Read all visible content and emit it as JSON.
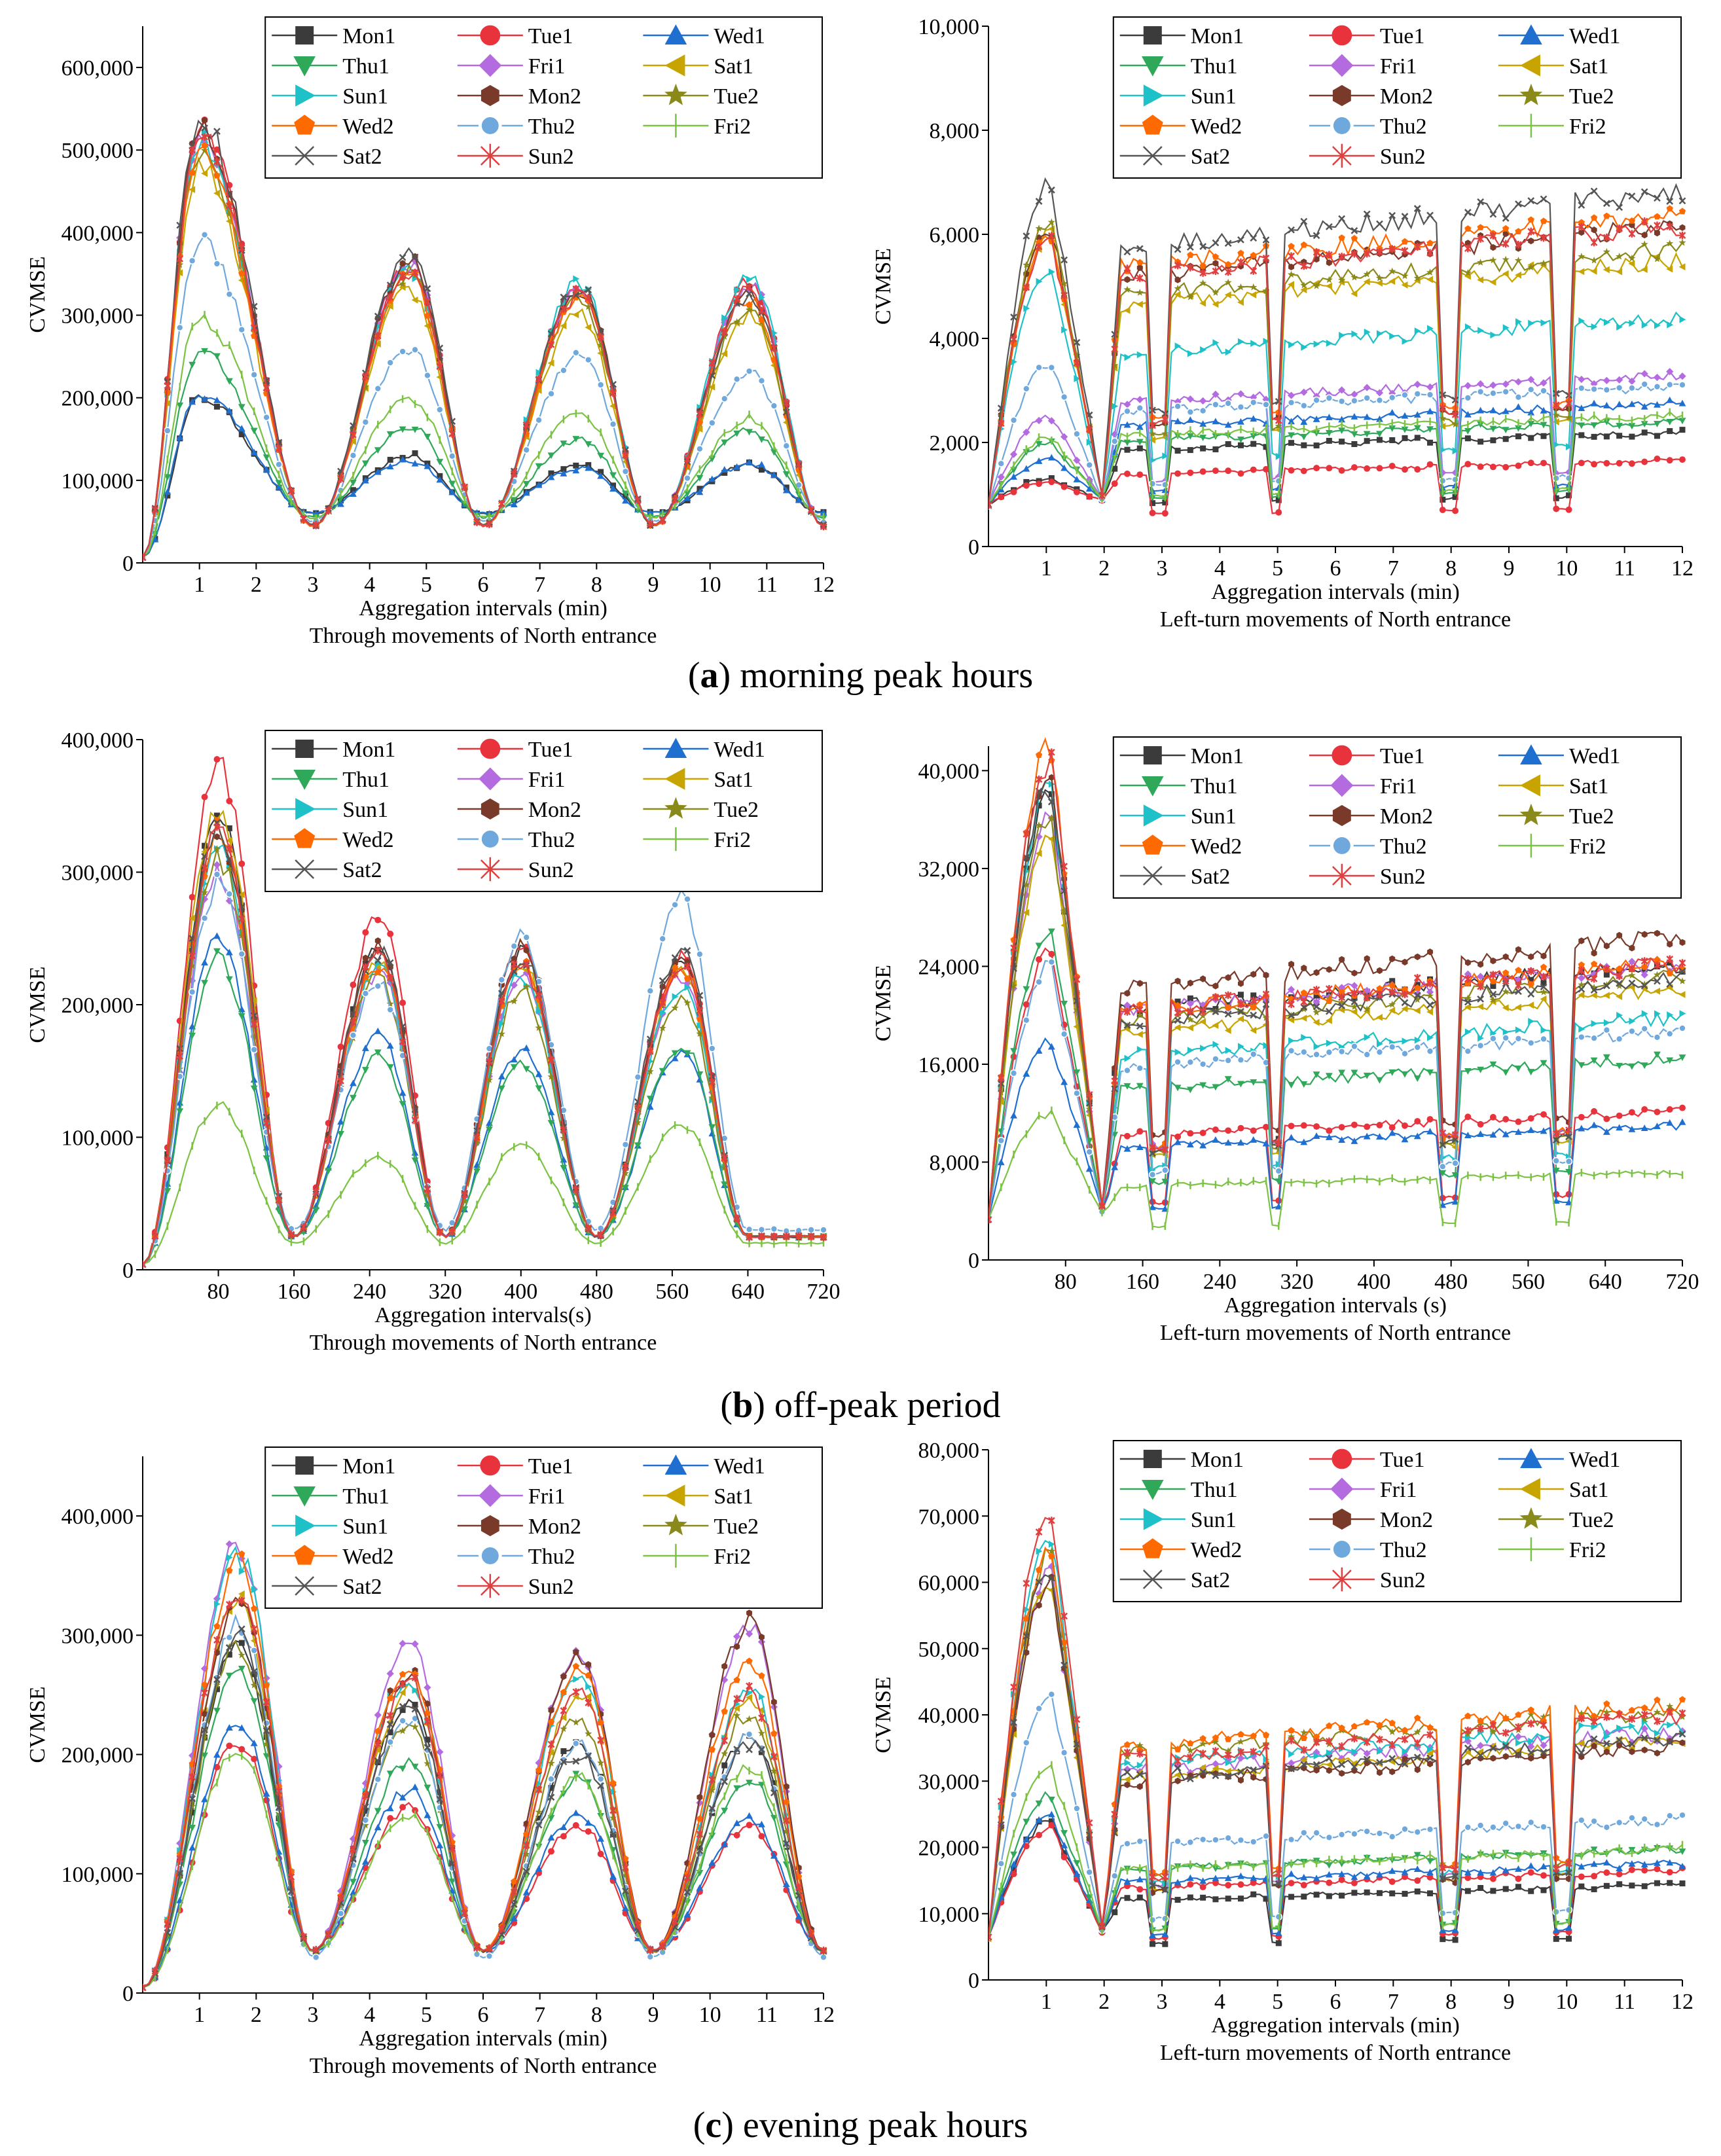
{
  "figure": {
    "captions": [
      {
        "letter": "a",
        "text": "morning peak hours"
      },
      {
        "letter": "b",
        "text": "off-peak period"
      },
      {
        "letter": "c",
        "text": "evening peak hours"
      }
    ]
  },
  "legend_entries": [
    {
      "name": "Mon1",
      "color": "#3b3b3b",
      "marker": "square"
    },
    {
      "name": "Tue1",
      "color": "#e8323c",
      "marker": "circle"
    },
    {
      "name": "Wed1",
      "color": "#1f6fd0",
      "marker": "triangle-up"
    },
    {
      "name": "Thu1",
      "color": "#2fa85a",
      "marker": "triangle-down"
    },
    {
      "name": "Fri1",
      "color": "#b46be0",
      "marker": "diamond"
    },
    {
      "name": "Sat1",
      "color": "#c8a400",
      "marker": "triangle-left"
    },
    {
      "name": "Sun1",
      "color": "#1fc1c8",
      "marker": "triangle-right"
    },
    {
      "name": "Mon2",
      "color": "#7a3a2a",
      "marker": "hexagon"
    },
    {
      "name": "Tue2",
      "color": "#8a8a1a",
      "marker": "star"
    },
    {
      "name": "Wed2",
      "color": "#ff6a00",
      "marker": "pentagon"
    },
    {
      "name": "Thu2",
      "color": "#6fa8dc",
      "marker": "sphere"
    },
    {
      "name": "Fri2",
      "color": "#7cc243",
      "marker": "vline"
    },
    {
      "name": "Sat2",
      "color": "#555555",
      "marker": "x"
    },
    {
      "name": "Sun2",
      "color": "#e04040",
      "marker": "asterisk"
    }
  ],
  "chart_data": [
    {
      "type": "line",
      "panel": "a",
      "side": "left",
      "title": "Through movements of North entrance",
      "xlabel": "Aggregation intervals (min)",
      "ylabel": "CVMSE",
      "xlim": [
        0,
        12
      ],
      "ylim": [
        0,
        650000
      ],
      "xticks": [
        1,
        2,
        3,
        4,
        5,
        6,
        7,
        8,
        9,
        10,
        11,
        12
      ],
      "xtick_labels": [
        "1",
        "2",
        "3",
        "4",
        "5",
        "6",
        "7",
        "8",
        "9",
        "10",
        "11",
        "12"
      ],
      "yticks": [
        0,
        100000,
        200000,
        300000,
        400000,
        500000,
        600000
      ],
      "ytick_labels": [
        "0",
        "100,000",
        "200,000",
        "300,000",
        "400,000",
        "500,000",
        "600,000"
      ],
      "legend_position": "top-right",
      "periods": [
        1.0,
        4.7,
        7.7,
        10.7
      ],
      "troughs": [
        0,
        3.0,
        6.0,
        9.0,
        12.0
      ],
      "series": [
        {
          "name": "Mon1",
          "peaks": [
            200000,
            130000,
            120000,
            120000
          ],
          "trough": 60000
        },
        {
          "name": "Tue1",
          "peaks": [
            530000,
            360000,
            330000,
            340000
          ],
          "trough": 45000
        },
        {
          "name": "Wed1",
          "peaks": [
            205000,
            125000,
            115000,
            120000
          ],
          "trough": 60000
        },
        {
          "name": "Thu1",
          "peaks": [
            255000,
            165000,
            150000,
            160000
          ],
          "trough": 55000
        },
        {
          "name": "Fri1",
          "peaks": [
            520000,
            360000,
            330000,
            335000
          ],
          "trough": 45000
        },
        {
          "name": "Sat1",
          "peaks": [
            480000,
            330000,
            300000,
            300000
          ],
          "trough": 45000
        },
        {
          "name": "Sun1",
          "peaks": [
            510000,
            355000,
            340000,
            345000
          ],
          "trough": 45000
        },
        {
          "name": "Mon2",
          "peaks": [
            525000,
            365000,
            330000,
            330000
          ],
          "trough": 45000
        },
        {
          "name": "Tue2",
          "peaks": [
            500000,
            350000,
            320000,
            310000
          ],
          "trough": 45000
        },
        {
          "name": "Wed2",
          "peaks": [
            495000,
            345000,
            320000,
            320000
          ],
          "trough": 45000
        },
        {
          "name": "Thu2",
          "peaks": [
            390000,
            260000,
            250000,
            230000
          ],
          "trough": 50000
        },
        {
          "name": "Fri2",
          "peaks": [
            295000,
            200000,
            180000,
            175000
          ],
          "trough": 55000
        },
        {
          "name": "Sat2",
          "peaks": [
            540000,
            375000,
            335000,
            325000
          ],
          "trough": 45000
        },
        {
          "name": "Sun2",
          "peaks": [
            515000,
            350000,
            325000,
            330000
          ],
          "trough": 45000
        }
      ]
    },
    {
      "type": "line",
      "panel": "a",
      "side": "right",
      "title": "Left-turn movements of North entrance",
      "xlabel": "Aggregation intervals (min)",
      "ylabel": "CVMSE",
      "xlim": [
        0,
        12
      ],
      "ylim": [
        0,
        10000
      ],
      "xticks": [
        1,
        2,
        3,
        4,
        5,
        6,
        7,
        8,
        9,
        10,
        11,
        12
      ],
      "xtick_labels": [
        "1",
        "2",
        "3",
        "4",
        "5",
        "6",
        "7",
        "8",
        "9",
        "10",
        "11",
        "12"
      ],
      "yticks": [
        0,
        2000,
        4000,
        6000,
        8000,
        10000
      ],
      "ytick_labels": [
        "0",
        "2,000",
        "4,000",
        "6,000",
        "8,000",
        "10,000"
      ],
      "legend_position": "top-right",
      "series": [
        {
          "name": "Mon1",
          "peak": 1300,
          "level": 2000
        },
        {
          "name": "Tue1",
          "peak": 1250,
          "level": 1500
        },
        {
          "name": "Wed1",
          "peak": 1700,
          "level": 2500
        },
        {
          "name": "Thu1",
          "peak": 2000,
          "level": 2200
        },
        {
          "name": "Fri1",
          "peak": 2500,
          "level": 3000
        },
        {
          "name": "Sat1",
          "peak": 6100,
          "level": 5000
        },
        {
          "name": "Sun1",
          "peak": 5400,
          "level": 4000
        },
        {
          "name": "Mon2",
          "peak": 6200,
          "level": 5600
        },
        {
          "name": "Tue2",
          "peak": 6300,
          "level": 5200
        },
        {
          "name": "Wed2",
          "peak": 6000,
          "level": 5800
        },
        {
          "name": "Thu2",
          "peak": 3500,
          "level": 2800
        },
        {
          "name": "Fri2",
          "peak": 2100,
          "level": 2300
        },
        {
          "name": "Sat2",
          "peak": 7000,
          "level": 6200
        },
        {
          "name": "Sun2",
          "peak": 6000,
          "level": 5600
        }
      ]
    },
    {
      "type": "line",
      "panel": "b",
      "side": "left",
      "title": "Through movements of North entrance",
      "xlabel": "Aggregation intervals(s)",
      "ylabel": "CVMSE",
      "xlim": [
        0,
        720
      ],
      "ylim": [
        0,
        400000
      ],
      "xticks": [
        80,
        160,
        240,
        320,
        400,
        480,
        560,
        640,
        720
      ],
      "xtick_labels": [
        "80",
        "160",
        "240",
        "320",
        "400",
        "480",
        "560",
        "640",
        "720"
      ],
      "yticks": [
        0,
        100000,
        200000,
        300000,
        400000
      ],
      "ytick_labels": [
        "0",
        "100,000",
        "200,000",
        "300,000",
        "400,000"
      ],
      "legend_position": "top-right",
      "periods": [
        80,
        250,
        400,
        570
      ],
      "troughs": [
        0,
        160,
        320,
        480,
        640,
        720
      ],
      "series": [
        {
          "name": "Mon1",
          "peaks": [
            340000,
            240000,
            240000,
            230000
          ],
          "trough": 25000
        },
        {
          "name": "Tue1",
          "peaks": [
            380000,
            265000,
            245000,
            235000
          ],
          "trough": 25000
        },
        {
          "name": "Wed1",
          "peaks": [
            250000,
            175000,
            165000,
            165000
          ],
          "trough": 25000
        },
        {
          "name": "Thu1",
          "peaks": [
            235000,
            160000,
            155000,
            170000
          ],
          "trough": 25000
        },
        {
          "name": "Fri1",
          "peaks": [
            300000,
            225000,
            220000,
            220000
          ],
          "trough": 25000
        },
        {
          "name": "Sat1",
          "peaks": [
            350000,
            235000,
            230000,
            225000
          ],
          "trough": 25000
        },
        {
          "name": "Sun1",
          "peaks": [
            325000,
            230000,
            220000,
            215000
          ],
          "trough": 25000
        },
        {
          "name": "Mon2",
          "peaks": [
            330000,
            245000,
            245000,
            235000
          ],
          "trough": 25000
        },
        {
          "name": "Tue2",
          "peaks": [
            310000,
            220000,
            210000,
            205000
          ],
          "trough": 25000
        },
        {
          "name": "Wed2",
          "peaks": [
            330000,
            230000,
            230000,
            230000
          ],
          "trough": 25000
        },
        {
          "name": "Thu2",
          "peaks": [
            290000,
            215000,
            250000,
            280000
          ],
          "trough": 30000
        },
        {
          "name": "Fri2",
          "peaks": [
            125000,
            85000,
            95000,
            110000
          ],
          "trough": 20000
        },
        {
          "name": "Sat2",
          "peaks": [
            335000,
            240000,
            235000,
            240000
          ],
          "trough": 25000
        },
        {
          "name": "Sun2",
          "peaks": [
            330000,
            235000,
            230000,
            230000
          ],
          "trough": 25000
        }
      ]
    },
    {
      "type": "line",
      "panel": "b",
      "side": "right",
      "title": "Left-turn movements of North entrance",
      "xlabel": "Aggregation intervals (s)",
      "ylabel": "CVMSE",
      "xlim": [
        0,
        720
      ],
      "ylim": [
        0,
        42000
      ],
      "xticks": [
        80,
        160,
        240,
        320,
        400,
        480,
        560,
        640,
        720
      ],
      "xtick_labels": [
        "80",
        "160",
        "240",
        "320",
        "400",
        "480",
        "560",
        "640",
        "720"
      ],
      "yticks": [
        0,
        8000,
        16000,
        24000,
        32000,
        40000
      ],
      "ytick_labels": [
        "0",
        "8,000",
        "16,000",
        "24,000",
        "32,000",
        "40,000"
      ],
      "legend_position": "top-right",
      "series": [
        {
          "name": "Mon1",
          "peak": 38000,
          "level": 22000
        },
        {
          "name": "Tue1",
          "peak": 25000,
          "level": 11000
        },
        {
          "name": "Wed1",
          "peak": 18000,
          "level": 10000
        },
        {
          "name": "Thu1",
          "peak": 27000,
          "level": 15000
        },
        {
          "name": "Fri1",
          "peak": 36000,
          "level": 22000
        },
        {
          "name": "Sat1",
          "peak": 35000,
          "level": 20000
        },
        {
          "name": "Sun1",
          "peak": 39000,
          "level": 18000
        },
        {
          "name": "Mon2",
          "peak": 40000,
          "level": 24000
        },
        {
          "name": "Tue2",
          "peak": 36000,
          "level": 21000
        },
        {
          "name": "Wed2",
          "peak": 42000,
          "level": 22000
        },
        {
          "name": "Thu2",
          "peak": 24000,
          "level": 17000
        },
        {
          "name": "Fri2",
          "peak": 12000,
          "level": 6500
        },
        {
          "name": "Sat2",
          "peak": 39000,
          "level": 21000
        },
        {
          "name": "Sun2",
          "peak": 41000,
          "level": 22000
        }
      ]
    },
    {
      "type": "line",
      "panel": "c",
      "side": "left",
      "title": "Through movements of North entrance",
      "xlabel": "Aggregation intervals (min)",
      "ylabel": "CVMSE",
      "xlim": [
        0,
        12
      ],
      "ylim": [
        0,
        450000
      ],
      "xticks": [
        1,
        2,
        3,
        4,
        5,
        6,
        7,
        8,
        9,
        10,
        11,
        12
      ],
      "xtick_labels": [
        "1",
        "2",
        "3",
        "4",
        "5",
        "6",
        "7",
        "8",
        "9",
        "10",
        "11",
        "12"
      ],
      "yticks": [
        0,
        100000,
        200000,
        300000,
        400000
      ],
      "ytick_labels": [
        "0",
        "100,000",
        "200,000",
        "300,000",
        "400,000"
      ],
      "legend_position": "top-right",
      "periods": [
        1.7,
        4.7,
        7.7,
        10.7
      ],
      "troughs": [
        0,
        3.0,
        6.0,
        9.0,
        12.0
      ],
      "series": [
        {
          "name": "Mon1",
          "peaks": [
            290000,
            240000,
            210000,
            215000
          ],
          "trough": 35000
        },
        {
          "name": "Tue1",
          "peaks": [
            210000,
            155000,
            140000,
            140000
          ],
          "trough": 35000
        },
        {
          "name": "Wed1",
          "peaks": [
            225000,
            170000,
            150000,
            145000
          ],
          "trough": 35000
        },
        {
          "name": "Thu1",
          "peaks": [
            270000,
            195000,
            180000,
            180000
          ],
          "trough": 35000
        },
        {
          "name": "Fri1",
          "peaks": [
            375000,
            290000,
            285000,
            305000
          ],
          "trough": 35000
        },
        {
          "name": "Sat1",
          "peaks": [
            330000,
            255000,
            250000,
            245000
          ],
          "trough": 35000
        },
        {
          "name": "Sun1",
          "peaks": [
            365000,
            265000,
            270000,
            255000
          ],
          "trough": 35000
        },
        {
          "name": "Mon2",
          "peaks": [
            330000,
            270000,
            280000,
            310000
          ],
          "trough": 35000
        },
        {
          "name": "Tue2",
          "peaks": [
            290000,
            225000,
            230000,
            235000
          ],
          "trough": 35000
        },
        {
          "name": "Wed2",
          "peaks": [
            360000,
            270000,
            275000,
            280000
          ],
          "trough": 35000
        },
        {
          "name": "Thu2",
          "peaks": [
            310000,
            230000,
            210000,
            215000
          ],
          "trough": 30000
        },
        {
          "name": "Fri2",
          "peaks": [
            205000,
            150000,
            180000,
            190000
          ],
          "trough": 35000
        },
        {
          "name": "Sat2",
          "peaks": [
            300000,
            240000,
            200000,
            210000
          ],
          "trough": 35000
        },
        {
          "name": "Sun2",
          "peaks": [
            340000,
            260000,
            250000,
            250000
          ],
          "trough": 35000
        }
      ]
    },
    {
      "type": "line",
      "panel": "c",
      "side": "right",
      "title": "Left-turn movements of North entrance",
      "xlabel": "Aggregation intervals (min)",
      "ylabel": "CVMSE",
      "xlim": [
        0,
        12
      ],
      "ylim": [
        0,
        80000
      ],
      "xticks": [
        1,
        2,
        3,
        4,
        5,
        6,
        7,
        8,
        9,
        10,
        11,
        12
      ],
      "xtick_labels": [
        "1",
        "2",
        "3",
        "4",
        "5",
        "6",
        "7",
        "8",
        "9",
        "10",
        "11",
        "12"
      ],
      "yticks": [
        0,
        10000,
        20000,
        30000,
        40000,
        50000,
        60000,
        70000,
        80000
      ],
      "ytick_labels": [
        "0",
        "10,000",
        "20,000",
        "30,000",
        "40,000",
        "50,000",
        "60,000",
        "70,000",
        "80,000"
      ],
      "legend_position": "top-right",
      "series": [
        {
          "name": "Mon1",
          "peak": 24000,
          "level": 13000
        },
        {
          "name": "Tue1",
          "peak": 23000,
          "level": 15000
        },
        {
          "name": "Wed1",
          "peak": 25000,
          "level": 16000
        },
        {
          "name": "Thu1",
          "peak": 28000,
          "level": 18000
        },
        {
          "name": "Fri1",
          "peak": 62000,
          "level": 34000
        },
        {
          "name": "Sat1",
          "peak": 60000,
          "level": 33000
        },
        {
          "name": "Sun1",
          "peak": 68000,
          "level": 35000
        },
        {
          "name": "Mon2",
          "peak": 60000,
          "level": 32000
        },
        {
          "name": "Tue2",
          "peak": 64000,
          "level": 37000
        },
        {
          "name": "Wed2",
          "peak": 65000,
          "level": 38000
        },
        {
          "name": "Thu2",
          "peak": 43000,
          "level": 22000
        },
        {
          "name": "Fri2",
          "peak": 32000,
          "level": 18000
        },
        {
          "name": "Sat2",
          "peak": 62000,
          "level": 33000
        },
        {
          "name": "Sun2",
          "peak": 70000,
          "level": 36000
        }
      ]
    }
  ]
}
